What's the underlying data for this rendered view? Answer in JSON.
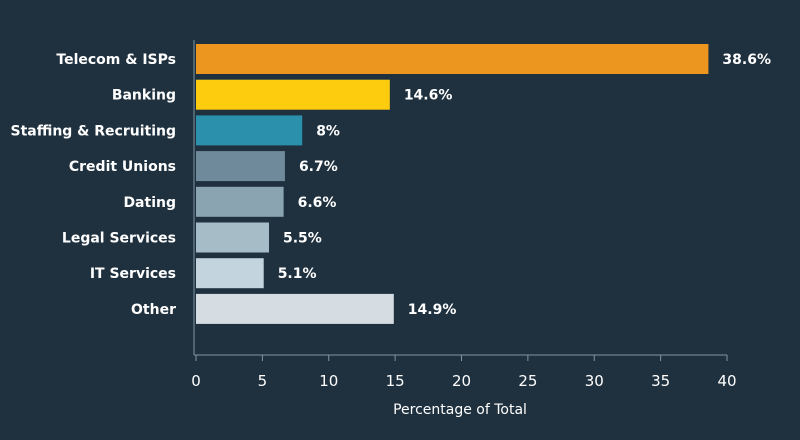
{
  "chart_data": {
    "type": "bar",
    "orientation": "horizontal",
    "categories": [
      "Telecom & ISPs",
      "Banking",
      "Staffing & Recruiting",
      "Credit Unions",
      "Dating",
      "Legal Services",
      "IT Services",
      "Other"
    ],
    "values": [
      38.6,
      14.6,
      8,
      6.7,
      6.6,
      5.5,
      5.1,
      14.9
    ],
    "value_labels": [
      "38.6%",
      "14.6%",
      "8%",
      "6.7%",
      "6.6%",
      "5.5%",
      "5.1%",
      "14.9%"
    ],
    "bar_colors": [
      "#ec961f",
      "#fecc0f",
      "#2a90ab",
      "#6f8a9b",
      "#8aa4b1",
      "#a6bcc7",
      "#c4d4de",
      "#d5dde3"
    ],
    "xlabel": "Percentage of Total",
    "ylabel": "",
    "xlim": [
      0,
      40
    ],
    "xticks": [
      0,
      5,
      10,
      15,
      20,
      25,
      30,
      35,
      40
    ],
    "grid": false
  },
  "colors": {
    "background": "#1f313f",
    "axis": "#8295a3",
    "text": "#ffffff"
  }
}
